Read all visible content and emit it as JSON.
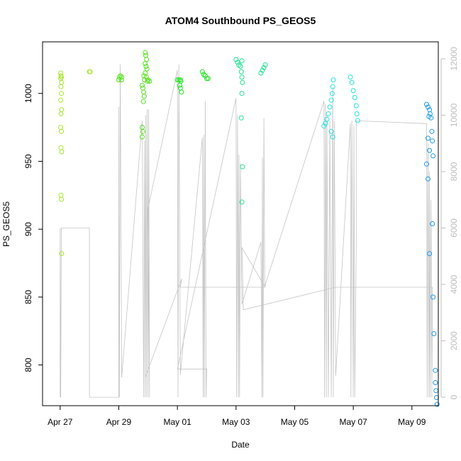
{
  "chart_data": {
    "type": "scatter",
    "title": "ATOM4 Southbound PS_GEOS5",
    "xlabel": "Date",
    "ylabel": "PS_GEOS5",
    "x_ticks": [
      "Apr 27",
      "Apr 29",
      "May 01",
      "May 03",
      "May 05",
      "May 07",
      "May 09"
    ],
    "x_range_days": [
      -0.6,
      12.9
    ],
    "ylim": [
      770,
      1038
    ],
    "y_ticks": [
      800,
      850,
      900,
      950,
      1000
    ],
    "y2lim": [
      -300,
      12600
    ],
    "y2_ticks": [
      0,
      2000,
      4000,
      6000,
      8000,
      10000,
      12000
    ],
    "y2_color": "#bdbdbd",
    "grid": false,
    "legend": "none",
    "series": [
      {
        "color": "#a6e52a",
        "points": [
          [
            0.02,
            1015
          ],
          [
            0.03,
            1013
          ],
          [
            0.04,
            1012
          ],
          [
            0.02,
            1011
          ],
          [
            0.05,
            1008
          ],
          [
            0.03,
            1005
          ],
          [
            0.04,
            1000
          ],
          [
            0.02,
            995
          ],
          [
            0.05,
            988
          ],
          [
            0.03,
            985
          ],
          [
            0.02,
            975
          ],
          [
            0.04,
            972
          ],
          [
            0.03,
            960
          ],
          [
            0.05,
            957
          ],
          [
            0.03,
            925
          ],
          [
            0.04,
            922
          ],
          [
            0.05,
            882
          ],
          [
            1.0,
            1016
          ],
          [
            1.02,
            1016
          ]
        ]
      },
      {
        "color": "#55e21f",
        "points": [
          [
            2.0,
            1010
          ],
          [
            2.03,
            1012
          ],
          [
            2.06,
            1013
          ],
          [
            2.09,
            1010
          ],
          [
            2.1,
            1012
          ],
          [
            2.8,
            1006
          ],
          [
            2.82,
            1004
          ],
          [
            2.85,
            1001
          ],
          [
            2.87,
            998
          ],
          [
            2.84,
            994
          ],
          [
            2.8,
            975
          ],
          [
            2.82,
            972
          ],
          [
            2.8,
            968
          ],
          [
            2.9,
            1030
          ],
          [
            2.92,
            1028
          ],
          [
            2.95,
            1025
          ],
          [
            2.9,
            1022
          ],
          [
            2.93,
            1020
          ],
          [
            2.96,
            1018
          ],
          [
            2.9,
            1015
          ],
          [
            2.94,
            1012
          ],
          [
            2.98,
            1009
          ],
          [
            3.0,
            1010
          ],
          [
            3.05,
            1009
          ],
          [
            2.88,
            1010
          ],
          [
            2.86,
            1013
          ]
        ]
      },
      {
        "color": "#1fe21f",
        "points": [
          [
            4.0,
            1010
          ],
          [
            4.05,
            1010
          ],
          [
            4.1,
            1010
          ],
          [
            4.12,
            1009
          ],
          [
            4.08,
            1006
          ],
          [
            4.1,
            1004
          ],
          [
            4.14,
            1001
          ],
          [
            4.85,
            1016
          ],
          [
            4.9,
            1014
          ],
          [
            4.95,
            1013
          ],
          [
            5.0,
            1011
          ],
          [
            5.05,
            1011
          ]
        ]
      },
      {
        "color": "#1fe291",
        "points": [
          [
            6.0,
            1025
          ],
          [
            6.05,
            1023
          ],
          [
            6.1,
            1021
          ],
          [
            6.15,
            1020
          ],
          [
            6.2,
            1024
          ],
          [
            6.18,
            1016
          ],
          [
            6.2,
            1012
          ],
          [
            6.22,
            1008
          ],
          [
            6.2,
            1000
          ],
          [
            6.18,
            982
          ],
          [
            6.22,
            946
          ],
          [
            6.2,
            920
          ],
          [
            6.85,
            1015
          ],
          [
            6.9,
            1017
          ],
          [
            6.95,
            1019
          ],
          [
            7.0,
            1021
          ]
        ]
      },
      {
        "color": "#24e2dc",
        "points": [
          [
            9.0,
            976
          ],
          [
            9.05,
            978
          ],
          [
            9.1,
            981
          ],
          [
            9.15,
            985
          ],
          [
            9.2,
            990
          ],
          [
            9.25,
            995
          ],
          [
            9.28,
            1000
          ],
          [
            9.3,
            1005
          ],
          [
            9.32,
            1010
          ],
          [
            9.25,
            972
          ],
          [
            9.3,
            968
          ],
          [
            9.9,
            1012
          ],
          [
            9.95,
            1008
          ],
          [
            10.0,
            1002
          ],
          [
            10.05,
            997
          ],
          [
            10.1,
            991
          ],
          [
            10.12,
            985
          ],
          [
            10.15,
            980
          ]
        ]
      },
      {
        "color": "#1f9ae8",
        "points": [
          [
            12.5,
            992
          ],
          [
            12.55,
            990
          ],
          [
            12.6,
            988
          ],
          [
            12.62,
            985
          ],
          [
            12.58,
            983
          ],
          [
            12.65,
            982
          ],
          [
            12.68,
            972
          ],
          [
            12.55,
            967
          ],
          [
            12.7,
            965
          ],
          [
            12.6,
            958
          ],
          [
            12.72,
            954
          ],
          [
            12.5,
            948
          ],
          [
            12.55,
            937
          ],
          [
            12.7,
            904
          ],
          [
            12.6,
            882
          ],
          [
            12.72,
            850
          ],
          [
            12.75,
            823
          ],
          [
            12.8,
            796
          ],
          [
            12.8,
            787
          ],
          [
            12.82,
            781
          ],
          [
            12.84,
            776
          ],
          [
            12.86,
            771
          ]
        ]
      }
    ],
    "gray_line": {
      "color": "#c4c4c4",
      "axis": "right",
      "points": [
        [
          0.0,
          0
        ],
        [
          0.0,
          6000
        ],
        [
          0.02,
          0
        ],
        [
          0.04,
          6000
        ],
        [
          1.0,
          6000
        ],
        [
          1.0,
          0
        ],
        [
          2.0,
          0
        ],
        [
          2.0,
          10300
        ],
        [
          2.02,
          0
        ],
        [
          2.05,
          11800
        ],
        [
          2.1,
          700
        ],
        [
          2.8,
          9800
        ],
        [
          2.85,
          0
        ],
        [
          2.88,
          9100
        ],
        [
          2.9,
          0
        ],
        [
          2.92,
          10000
        ],
        [
          2.95,
          0
        ],
        [
          2.97,
          10200
        ],
        [
          3.0,
          0
        ],
        [
          3.02,
          10200
        ],
        [
          3.05,
          0
        ],
        [
          3.0,
          6700
        ],
        [
          4.0,
          11600
        ],
        [
          4.02,
          0
        ],
        [
          4.05,
          11800
        ],
        [
          4.1,
          800
        ],
        [
          4.85,
          9200
        ],
        [
          4.88,
          0
        ],
        [
          4.9,
          9300
        ],
        [
          4.92,
          0
        ],
        [
          4.95,
          10500
        ],
        [
          4.98,
          0
        ],
        [
          5.0,
          1000
        ],
        [
          4.0,
          1000
        ],
        [
          6.0,
          10600
        ],
        [
          6.02,
          0
        ],
        [
          6.05,
          10000
        ],
        [
          6.08,
          0
        ],
        [
          6.1,
          8600
        ],
        [
          6.12,
          0
        ],
        [
          6.15,
          8300
        ],
        [
          6.2,
          3300
        ],
        [
          6.85,
          5500
        ],
        [
          6.88,
          0
        ],
        [
          6.9,
          8500
        ],
        [
          6.92,
          0
        ],
        [
          6.95,
          9900
        ],
        [
          6.98,
          3900
        ],
        [
          7.0,
          4000
        ],
        [
          9.0,
          10500
        ],
        [
          9.02,
          0
        ],
        [
          9.05,
          10400
        ],
        [
          9.08,
          0
        ],
        [
          9.1,
          10000
        ],
        [
          9.15,
          0
        ],
        [
          9.2,
          9800
        ],
        [
          9.25,
          0
        ],
        [
          9.3,
          11000
        ],
        [
          9.32,
          0
        ],
        [
          9.35,
          9800
        ],
        [
          9.4,
          750
        ],
        [
          9.9,
          9700
        ],
        [
          9.92,
          0
        ],
        [
          9.95,
          9800
        ],
        [
          10.0,
          0
        ],
        [
          10.02,
          9600
        ],
        [
          10.05,
          0
        ],
        [
          10.1,
          5400
        ],
        [
          10.1,
          9800
        ],
        [
          12.5,
          9700
        ],
        [
          12.52,
          0
        ],
        [
          12.55,
          9000
        ],
        [
          12.58,
          0
        ],
        [
          12.6,
          8000
        ],
        [
          12.62,
          0
        ],
        [
          12.65,
          7000
        ],
        [
          12.68,
          0
        ],
        [
          12.7,
          3900
        ],
        [
          9.4,
          3900
        ],
        [
          6.25,
          3100
        ],
        [
          6.2,
          5300
        ],
        [
          7.0,
          3900
        ],
        [
          4.1,
          3900
        ],
        [
          4.15,
          4200
        ],
        [
          2.9,
          700
        ]
      ]
    }
  }
}
